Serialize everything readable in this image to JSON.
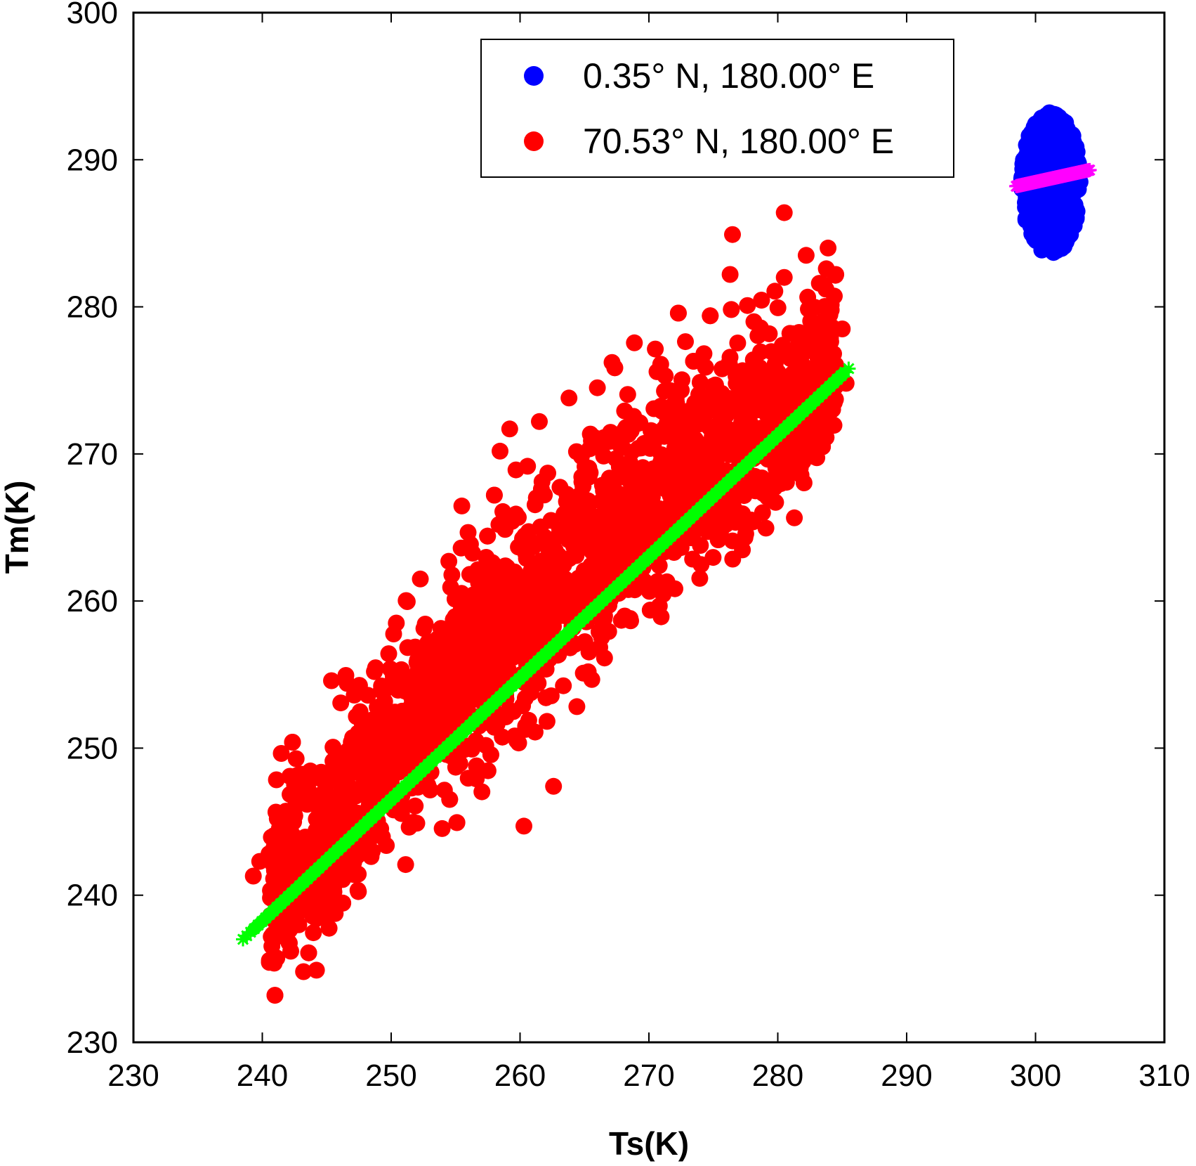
{
  "chart_data": {
    "type": "scatter",
    "xlabel": "Ts(K)",
    "ylabel": "Tm(K)",
    "xlim": [
      230,
      310
    ],
    "ylim": [
      230,
      300
    ],
    "xticks": [
      230,
      240,
      250,
      260,
      270,
      280,
      290,
      300,
      310
    ],
    "yticks": [
      230,
      240,
      250,
      260,
      270,
      280,
      290,
      300
    ],
    "grid": false,
    "legend_position": "top-right",
    "series": [
      {
        "name": "0.35° N, 180.00° E",
        "color": "#0000ff",
        "marker": "circle",
        "distribution": {
          "x_range": [
            298.5,
            303.8
          ],
          "y_range": [
            283.5,
            293.6
          ],
          "x_center": 301.2,
          "y_center": 288.4
        },
        "fit": {
          "color": "#ff00ff",
          "marker": "star",
          "x": [
            298.5,
            304.2
          ],
          "y": [
            288.2,
            289.3
          ]
        }
      },
      {
        "name": "70.53° N, 180.00° E",
        "color": "#ff0000",
        "marker": "circle",
        "distribution": {
          "x_range": [
            239,
            285.5
          ],
          "y_range": [
            234.8,
            286.5
          ]
        },
        "outliers": [
          [
            280.5,
            286.4
          ],
          [
            283.9,
            284.0
          ],
          [
            282.2,
            283.5
          ],
          [
            284.5,
            282.2
          ],
          [
            276.3,
            282.2
          ],
          [
            280.5,
            282.0
          ],
          [
            285.0,
            278.5
          ],
          [
            243.2,
            234.8
          ],
          [
            244.2,
            234.9
          ],
          [
            239.3,
            241.3
          ],
          [
            239.8,
            242.3
          ],
          [
            242.5,
            247.5
          ],
          [
            262.6,
            247.4
          ],
          [
            263.8,
            273.8
          ],
          [
            266.0,
            274.5
          ],
          [
            259.2,
            271.7
          ],
          [
            260.3,
            244.7
          ],
          [
            248.7,
            255.2
          ],
          [
            250.4,
            258.5
          ],
          [
            285.3,
            274.8
          ],
          [
            283.4,
            270.7
          ],
          [
            261.5,
            272.2
          ]
        ],
        "fit": {
          "color": "#00ff00",
          "marker": "star",
          "x": [
            238.5,
            285.5
          ],
          "y": [
            237.0,
            275.8
          ]
        }
      }
    ]
  }
}
